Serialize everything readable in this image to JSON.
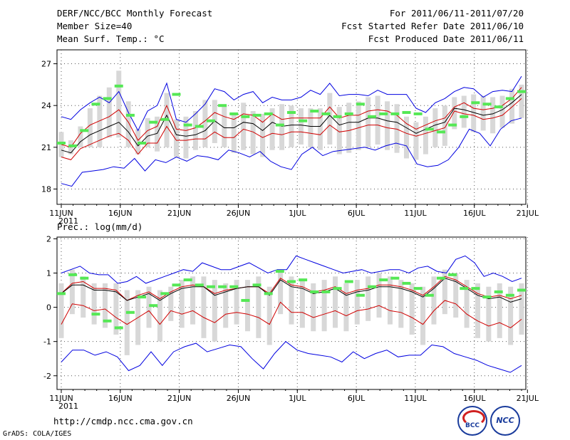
{
  "header": {
    "title": "DERF/NCC/BCC Monthly Forecast",
    "member_size": "Member Size=40",
    "variable": "Mean Surf. Temp.: °C",
    "forecast_period": "For 2011/06/11-2011/07/20",
    "refer_date": "Fcst Started Refer Date 2011/06/10",
    "produced_date": "Fcst Produced Date 2011/06/11"
  },
  "footer": {
    "url": "http://cmdp.ncc.cma.gov.cn",
    "credit": "GrADS: COLA/IGES",
    "logo_bcc_text": "BCC",
    "logo_ncc_text": "NCC"
  },
  "colors": {
    "box": "#d8d8d8",
    "member_marker": "#55e855",
    "outer_envelope": "#0000e0",
    "inner_envelope": "#d00000",
    "ensemble_mean": "#000000",
    "grid": "#555555"
  },
  "chart_data": [
    {
      "type": "line",
      "title": "Mean Surf. Temp.: °C",
      "x_tick_labels": [
        "11JUN",
        "16JUN",
        "21JUN",
        "26JUN",
        "1JUL",
        "6JUL",
        "11JUL",
        "16JUL",
        "21JUL"
      ],
      "x_year_label": "2011",
      "ylim": [
        16.9,
        28.0
      ],
      "yticks": [
        18,
        21,
        24,
        27
      ],
      "days": 40,
      "series": [
        {
          "name": "max",
          "values": [
            23.2,
            23.0,
            23.7,
            24.2,
            24.6,
            24.2,
            25.0,
            23.5,
            22.2,
            23.6,
            24.0,
            25.6,
            23.0,
            22.8,
            23.4,
            24.1,
            25.2,
            25.0,
            24.4,
            24.8,
            25.0,
            24.2,
            24.6,
            24.4,
            24.4,
            24.6,
            25.1,
            24.8,
            25.6,
            24.7,
            24.8,
            24.8,
            24.7,
            25.1,
            24.8,
            24.8,
            24.8,
            23.8,
            23.5,
            24.2,
            24.5,
            25.0,
            25.3,
            25.2,
            24.6,
            25.0,
            25.1,
            25.0,
            26.1
          ]
        },
        {
          "name": "upper",
          "values": [
            21.2,
            21.0,
            22.0,
            22.6,
            22.9,
            23.2,
            23.7,
            22.8,
            21.5,
            22.2,
            22.5,
            24.0,
            22.3,
            22.2,
            22.4,
            22.9,
            23.5,
            23.2,
            23.0,
            23.4,
            23.3,
            22.8,
            23.4,
            23.0,
            23.1,
            23.1,
            23.1,
            23.1,
            23.9,
            23.1,
            23.3,
            23.3,
            23.6,
            23.7,
            23.6,
            23.3,
            22.7,
            22.3,
            22.6,
            22.9,
            23.1,
            23.9,
            24.2,
            23.8,
            23.7,
            23.8,
            24.0,
            24.5,
            25.3
          ]
        },
        {
          "name": "mean",
          "values": [
            20.8,
            20.6,
            21.4,
            21.9,
            22.2,
            22.5,
            22.8,
            22.1,
            21.1,
            21.8,
            22.0,
            23.3,
            21.9,
            21.8,
            21.9,
            22.2,
            22.9,
            22.4,
            22.4,
            22.8,
            22.7,
            22.2,
            22.8,
            22.5,
            22.6,
            22.6,
            22.5,
            22.5,
            23.3,
            22.6,
            22.8,
            22.8,
            23.1,
            23.1,
            22.9,
            22.8,
            22.4,
            22.0,
            22.3,
            22.6,
            22.8,
            23.8,
            23.7,
            23.5,
            23.3,
            23.4,
            23.7,
            24.2,
            24.8
          ]
        },
        {
          "name": "lower",
          "values": [
            20.3,
            20.1,
            20.9,
            21.2,
            21.5,
            21.8,
            22.0,
            21.5,
            20.5,
            21.3,
            21.3,
            22.5,
            21.5,
            21.5,
            21.6,
            21.6,
            22.1,
            21.7,
            21.7,
            22.3,
            22.1,
            21.7,
            22.0,
            21.9,
            22.1,
            22.1,
            22.0,
            21.9,
            22.6,
            22.1,
            22.2,
            22.4,
            22.6,
            22.6,
            22.4,
            22.3,
            22.0,
            21.8,
            22.0,
            22.2,
            22.4,
            23.6,
            23.4,
            23.3,
            23.0,
            23.1,
            23.3,
            23.9,
            24.5
          ]
        },
        {
          "name": "min",
          "values": [
            18.4,
            18.2,
            19.2,
            19.3,
            19.4,
            19.6,
            19.5,
            20.2,
            19.3,
            20.1,
            19.9,
            20.3,
            20.0,
            20.4,
            20.3,
            20.1,
            20.8,
            20.6,
            20.3,
            20.7,
            20.0,
            19.6,
            19.4,
            20.5,
            21.0,
            20.4,
            20.7,
            20.8,
            20.9,
            21.0,
            20.8,
            21.1,
            21.3,
            21.1,
            19.8,
            19.6,
            19.7,
            20.1,
            21.0,
            22.3,
            22.0,
            21.1,
            22.3,
            22.9,
            23.1
          ]
        },
        {
          "name": "box_high",
          "values": [
            22.1,
            21.5,
            22.5,
            23.8,
            24.7,
            25.3,
            26.5,
            24.3,
            22.3,
            23.1,
            23.2,
            24.9,
            23.0,
            23.2,
            23.6,
            24.4,
            24.4,
            24.0,
            23.5,
            24.2,
            23.6,
            23.4,
            23.8,
            24.1,
            24.0,
            23.8,
            23.8,
            23.8,
            24.9,
            23.9,
            24.2,
            24.3,
            24.6,
            24.7,
            24.3,
            24.1,
            23.2,
            22.8,
            23.2,
            23.8,
            24.0,
            24.6,
            24.7,
            24.8,
            24.7,
            24.6,
            24.7,
            25.2,
            25.5
          ]
        },
        {
          "name": "box_low",
          "values": [
            20.3,
            20.5,
            21.0,
            21.0,
            21.0,
            21.7,
            21.7,
            21.0,
            20.5,
            21.0,
            20.7,
            21.0,
            20.3,
            20.2,
            20.8,
            21.0,
            21.3,
            21.0,
            20.6,
            20.8,
            20.5,
            20.3,
            20.8,
            20.8,
            21.0,
            21.2,
            21.0,
            20.8,
            21.2,
            20.5,
            20.6,
            20.8,
            21.0,
            21.2,
            20.8,
            20.6,
            20.2,
            20.1,
            20.5,
            21.0,
            21.1,
            22.3,
            22.4,
            22.1,
            22.2,
            22.0,
            22.4,
            22.7,
            23.1
          ]
        },
        {
          "name": "marker",
          "values": [
            21.3,
            21.1,
            22.2,
            24.1,
            24.5,
            25.4,
            23.3,
            21.3,
            22.8,
            23.0,
            24.8,
            22.6,
            22.5,
            22.9,
            24.0,
            23.4,
            23.2,
            23.3,
            23.4,
            22.6,
            23.5,
            22.9,
            23.6,
            23.4,
            23.2,
            23.4,
            24.1,
            23.2,
            23.4,
            23.4,
            23.5,
            23.4,
            22.3,
            22.1,
            22.6,
            23.2,
            24.2,
            24.1,
            23.9,
            24.5,
            25.0
          ]
        }
      ]
    },
    {
      "type": "line",
      "title": "Prec.: log(mm/d)",
      "x_tick_labels": [
        "11JUN",
        "16JUN",
        "21JUN",
        "26JUN",
        "1JUL",
        "6JUL",
        "11JUL",
        "16JUL",
        "21JUL"
      ],
      "x_year_label": "2011",
      "ylim": [
        -2.4,
        2.05
      ],
      "yticks": [
        -2,
        -1,
        0,
        1,
        2
      ],
      "days": 40,
      "series": [
        {
          "name": "max",
          "values": [
            1.0,
            1.1,
            1.2,
            1.0,
            0.95,
            0.95,
            0.7,
            0.75,
            0.9,
            0.7,
            0.8,
            0.9,
            1.0,
            1.1,
            1.05,
            1.3,
            1.2,
            1.1,
            1.1,
            1.2,
            1.3,
            1.15,
            1.0,
            1.1,
            1.1,
            1.5,
            1.4,
            1.3,
            1.2,
            1.1,
            1.0,
            1.05,
            1.1,
            1.0,
            1.05,
            1.1,
            1.1,
            1.0,
            1.15,
            1.2,
            1.05,
            1.0,
            1.4,
            1.5,
            1.3,
            0.9,
            1.0,
            0.9,
            0.75,
            0.85
          ]
        },
        {
          "name": "upper",
          "values": [
            0.4,
            0.7,
            0.75,
            0.55,
            0.55,
            0.5,
            0.2,
            0.35,
            0.45,
            0.25,
            0.45,
            0.6,
            0.65,
            0.6,
            0.4,
            0.5,
            0.55,
            0.6,
            0.6,
            0.4,
            0.85,
            0.65,
            0.6,
            0.45,
            0.5,
            0.6,
            0.4,
            0.5,
            0.55,
            0.65,
            0.65,
            0.6,
            0.5,
            0.35,
            0.6,
            0.9,
            0.8,
            0.6,
            0.4,
            0.3,
            0.35,
            0.25,
            0.35
          ]
        },
        {
          "name": "mean",
          "values": [
            0.4,
            0.65,
            0.65,
            0.5,
            0.5,
            0.45,
            0.2,
            0.3,
            0.4,
            0.2,
            0.4,
            0.55,
            0.6,
            0.6,
            0.35,
            0.45,
            0.55,
            0.6,
            0.6,
            0.35,
            0.8,
            0.6,
            0.55,
            0.4,
            0.45,
            0.55,
            0.35,
            0.45,
            0.5,
            0.6,
            0.6,
            0.55,
            0.45,
            0.3,
            0.55,
            0.85,
            0.75,
            0.55,
            0.35,
            0.25,
            0.3,
            0.15,
            0.25
          ]
        },
        {
          "name": "lower",
          "values": [
            -0.5,
            0.1,
            0.05,
            -0.1,
            -0.05,
            -0.3,
            -0.5,
            -0.3,
            -0.1,
            -0.5,
            -0.1,
            -0.2,
            -0.1,
            -0.3,
            -0.45,
            -0.2,
            -0.15,
            -0.2,
            -0.3,
            -0.5,
            0.15,
            -0.15,
            -0.15,
            -0.3,
            -0.2,
            -0.1,
            -0.25,
            -0.1,
            -0.05,
            0.05,
            -0.1,
            -0.15,
            -0.3,
            -0.5,
            -0.1,
            0.2,
            0.1,
            -0.2,
            -0.4,
            -0.55,
            -0.45,
            -0.6,
            -0.35
          ]
        },
        {
          "name": "min",
          "values": [
            -1.6,
            -1.25,
            -1.25,
            -1.4,
            -1.3,
            -1.45,
            -1.85,
            -1.7,
            -1.3,
            -1.7,
            -1.3,
            -1.15,
            -1.05,
            -1.3,
            -1.2,
            -1.1,
            -1.15,
            -1.5,
            -1.8,
            -1.35,
            -1.0,
            -1.25,
            -1.35,
            -1.4,
            -1.45,
            -1.6,
            -1.3,
            -1.5,
            -1.35,
            -1.25,
            -1.45,
            -1.4,
            -1.4,
            -1.1,
            -1.15,
            -1.35,
            -1.45,
            -1.55,
            -1.7,
            -1.8,
            -1.9,
            -1.7
          ]
        },
        {
          "name": "box_high",
          "values": [
            0.7,
            1.1,
            0.9,
            0.7,
            0.7,
            0.7,
            0.5,
            0.5,
            0.6,
            0.5,
            0.6,
            0.8,
            0.9,
            0.9,
            0.8,
            0.7,
            0.8,
            0.8,
            0.9,
            0.6,
            1.1,
            0.9,
            0.8,
            0.7,
            0.8,
            0.9,
            0.7,
            0.8,
            0.9,
            1.0,
            0.9,
            0.8,
            0.7,
            0.6,
            0.9,
            1.1,
            1.0,
            0.8,
            0.7,
            0.6,
            0.7,
            0.6,
            0.7
          ]
        },
        {
          "name": "box_low",
          "values": [
            -0.9,
            -0.2,
            -0.3,
            -0.5,
            -0.6,
            -0.8,
            -1.4,
            -1.1,
            -0.6,
            -1.0,
            -0.4,
            -0.6,
            -0.5,
            -0.9,
            -1.0,
            -0.6,
            -0.5,
            -0.7,
            -0.9,
            -1.1,
            -0.2,
            -0.5,
            -0.6,
            -0.7,
            -0.7,
            -0.6,
            -0.7,
            -0.5,
            -0.4,
            -0.3,
            -0.5,
            -0.6,
            -0.8,
            -1.1,
            -0.5,
            -0.2,
            -0.3,
            -0.6,
            -0.9,
            -1.0,
            -0.9,
            -1.1,
            -0.8
          ]
        },
        {
          "name": "marker",
          "values": [
            0.4,
            0.95,
            0.85,
            -0.2,
            -0.4,
            -0.6,
            -0.15,
            0.3,
            0.05,
            0.4,
            0.65,
            0.8,
            0.65,
            0.6,
            0.6,
            0.6,
            0.2,
            0.65,
            0.4,
            1.05,
            0.75,
            0.8,
            0.45,
            0.45,
            0.55,
            0.75,
            0.35,
            0.6,
            0.8,
            0.85,
            0.7,
            0.55,
            0.35,
            0.85,
            0.95,
            0.55,
            0.55,
            0.3,
            0.45,
            0.35,
            0.5
          ]
        }
      ]
    }
  ]
}
